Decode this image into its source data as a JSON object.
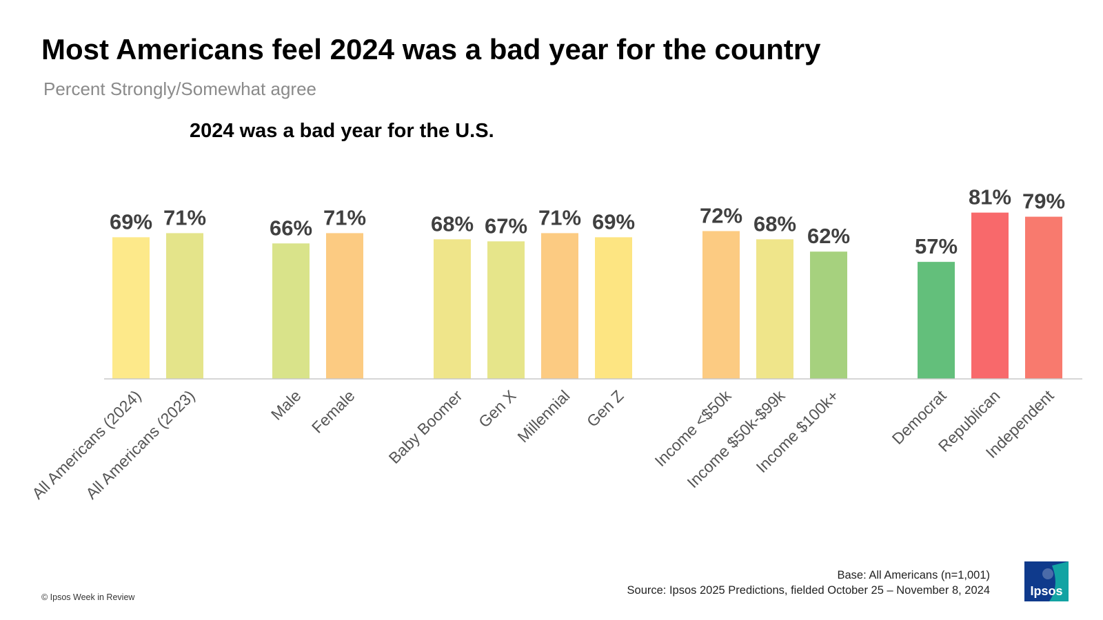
{
  "title": "Most Americans feel 2024 was a bad year for the country",
  "subtitle": "Percent Strongly/Somewhat agree",
  "footer": {
    "base": "Base: All Americans (n=1,001)",
    "source": "Source: Ipsos 2025 Predictions, fielded October 25 – November 8, 2024",
    "copyright": "© Ipsos Week in Review",
    "logo_text": "Ipsos"
  },
  "colors": {
    "axis": "#c8c8c8",
    "logo_bg": "#0f3a8c",
    "logo_accent": "#12a3a3"
  },
  "chart_data": {
    "type": "bar",
    "title": "2024 was a bad year for the U.S.",
    "xlabel": "",
    "ylabel": "",
    "ylim": [
      0,
      100
    ],
    "grid": false,
    "legend": "none",
    "value_suffix": "%",
    "categories": [
      "All Americans (2024)",
      "All Americans (2023)",
      "Male",
      "Female",
      "Baby Boomer",
      "Gen X",
      "Millennial",
      "Gen Z",
      "Income <$50k",
      "Income $50k-$99k",
      "Income $100k+",
      "Democrat",
      "Republican",
      "Independent"
    ],
    "values": [
      69,
      71,
      66,
      71,
      68,
      67,
      71,
      69,
      72,
      68,
      62,
      57,
      81,
      79
    ],
    "groups": [
      {
        "categories": [
          "All Americans (2024)",
          "All Americans (2023)"
        ]
      },
      {
        "categories": [
          "Male",
          "Female"
        ]
      },
      {
        "categories": [
          "Baby Boomer",
          "Gen X",
          "Millennial",
          "Gen Z"
        ]
      },
      {
        "categories": [
          "Income <$50k",
          "Income $50k-$99k",
          "Income $100k+"
        ]
      },
      {
        "categories": [
          "Democrat",
          "Republican",
          "Independent"
        ]
      }
    ],
    "bar_colors": [
      "#fde98a",
      "#e4e48a",
      "#d9e38a",
      "#fccb82",
      "#efe58a",
      "#e6e58a",
      "#fccb82",
      "#fde582",
      "#fccb82",
      "#efe58a",
      "#a6d17e",
      "#63bf7b",
      "#f8696b",
      "#f87a6e"
    ]
  }
}
